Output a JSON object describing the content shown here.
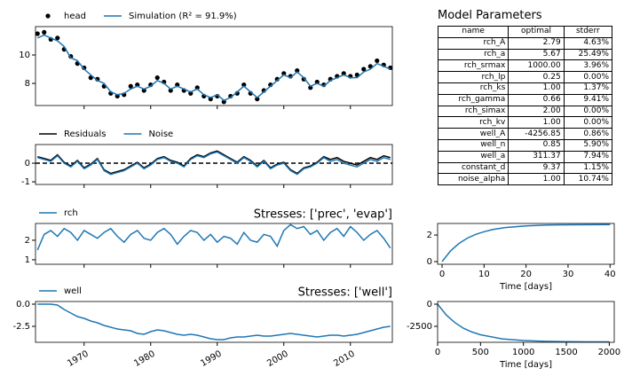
{
  "chart_data": [
    {
      "type": "line",
      "x": [
        1963,
        1964,
        1965,
        1966,
        1967,
        1968,
        1969,
        1970,
        1971,
        1972,
        1973,
        1974,
        1975,
        1976,
        1977,
        1978,
        1979,
        1980,
        1981,
        1982,
        1983,
        1984,
        1985,
        1986,
        1987,
        1988,
        1989,
        1990,
        1991,
        1992,
        1993,
        1994,
        1995,
        1996,
        1997,
        1998,
        1999,
        2000,
        2001,
        2002,
        2003,
        2004,
        2005,
        2006,
        2007,
        2008,
        2009,
        2010,
        2011,
        2012,
        2013,
        2014,
        2015,
        2016
      ],
      "series": [
        {
          "name": "head",
          "color": "#000000",
          "marker": "dot",
          "values": [
            11.5,
            11.6,
            11.1,
            11.2,
            10.4,
            9.9,
            9.4,
            9.1,
            8.4,
            8.3,
            7.8,
            7.3,
            7.1,
            7.2,
            7.8,
            7.9,
            7.5,
            7.9,
            8.4,
            8.1,
            7.5,
            7.9,
            7.5,
            7.3,
            7.7,
            7.1,
            6.9,
            7.1,
            6.7,
            7.1,
            7.3,
            7.9,
            7.3,
            6.9,
            7.5,
            7.9,
            8.3,
            8.7,
            8.5,
            8.9,
            8.3,
            7.7,
            8.1,
            7.9,
            8.3,
            8.5,
            8.7,
            8.5,
            8.6,
            9.0,
            9.2,
            9.6,
            9.3,
            9.1
          ]
        },
        {
          "name": "Simulation (R² = 91.9%)",
          "color": "#1f77b4",
          "values": [
            11.2,
            11.4,
            11.2,
            11.0,
            10.6,
            9.8,
            9.6,
            9.0,
            8.6,
            8.2,
            8.0,
            7.4,
            7.2,
            7.3,
            7.6,
            7.8,
            7.6,
            7.8,
            8.2,
            8.0,
            7.6,
            7.8,
            7.6,
            7.4,
            7.6,
            7.2,
            7.0,
            7.2,
            6.8,
            7.0,
            7.4,
            7.8,
            7.4,
            7.0,
            7.4,
            7.8,
            8.2,
            8.6,
            8.4,
            8.8,
            8.4,
            7.8,
            8.0,
            7.8,
            8.2,
            8.4,
            8.6,
            8.4,
            8.4,
            8.8,
            9.0,
            9.4,
            9.2,
            9.0
          ]
        }
      ],
      "xlim": [
        1962.7,
        2016.3
      ],
      "ylim": [
        6.44,
        12.0
      ],
      "yticks": [
        8,
        10
      ]
    },
    {
      "type": "line",
      "x": [
        1963,
        1964,
        1965,
        1966,
        1967,
        1968,
        1969,
        1970,
        1971,
        1972,
        1973,
        1974,
        1975,
        1976,
        1977,
        1978,
        1979,
        1980,
        1981,
        1982,
        1983,
        1984,
        1985,
        1986,
        1987,
        1988,
        1989,
        1990,
        1991,
        1992,
        1993,
        1994,
        1995,
        1996,
        1997,
        1998,
        1999,
        2000,
        2001,
        2002,
        2003,
        2004,
        2005,
        2006,
        2007,
        2008,
        2009,
        2010,
        2011,
        2012,
        2013,
        2014,
        2015,
        2016
      ],
      "series": [
        {
          "name": "Residuals",
          "color": "#000000",
          "values": [
            0.35,
            0.25,
            0.15,
            0.45,
            0.05,
            -0.15,
            0.15,
            -0.25,
            -0.05,
            0.25,
            -0.35,
            -0.55,
            -0.45,
            -0.35,
            -0.15,
            0.05,
            -0.25,
            -0.05,
            0.25,
            0.35,
            0.15,
            0.05,
            -0.15,
            0.25,
            0.45,
            0.35,
            0.55,
            0.65,
            0.45,
            0.25,
            0.05,
            0.35,
            0.15,
            -0.15,
            0.15,
            -0.25,
            -0.05,
            0.05,
            -0.35,
            -0.55,
            -0.25,
            -0.15,
            0.05,
            0.35,
            0.2,
            0.3,
            0.1,
            0.0,
            -0.1,
            0.1,
            0.3,
            0.2,
            0.4,
            0.3
          ]
        },
        {
          "name": "Noise",
          "color": "#1f77b4",
          "values": [
            0.3,
            0.2,
            0.1,
            0.4,
            0.0,
            -0.2,
            0.1,
            -0.3,
            -0.1,
            0.2,
            -0.4,
            -0.6,
            -0.5,
            -0.4,
            -0.2,
            0.0,
            -0.3,
            -0.1,
            0.2,
            0.3,
            0.1,
            0.0,
            -0.2,
            0.2,
            0.4,
            0.3,
            0.5,
            0.6,
            0.4,
            0.2,
            0.0,
            0.3,
            0.1,
            -0.2,
            0.1,
            -0.3,
            -0.1,
            0.0,
            -0.4,
            -0.6,
            -0.3,
            -0.2,
            0.0,
            0.3,
            0.1,
            0.2,
            0.0,
            -0.1,
            -0.2,
            0.0,
            0.2,
            0.1,
            0.3,
            0.2
          ]
        }
      ],
      "hline": 0,
      "xlim": [
        1962.7,
        2016.3
      ],
      "ylim": [
        -1.14,
        1.0
      ],
      "yticks": [
        -1,
        0
      ]
    },
    {
      "type": "line",
      "title": "Stresses: ['prec', 'evap']",
      "x": [
        1963,
        1964,
        1965,
        1966,
        1967,
        1968,
        1969,
        1970,
        1971,
        1972,
        1973,
        1974,
        1975,
        1976,
        1977,
        1978,
        1979,
        1980,
        1981,
        1982,
        1983,
        1984,
        1985,
        1986,
        1987,
        1988,
        1989,
        1990,
        1991,
        1992,
        1993,
        1994,
        1995,
        1996,
        1997,
        1998,
        1999,
        2000,
        2001,
        2002,
        2003,
        2004,
        2005,
        2006,
        2007,
        2008,
        2009,
        2010,
        2011,
        2012,
        2013,
        2014,
        2015,
        2016
      ],
      "series": [
        {
          "name": "rch",
          "color": "#1f77b4",
          "values": [
            1.5,
            2.3,
            2.5,
            2.2,
            2.6,
            2.4,
            2.0,
            2.5,
            2.3,
            2.1,
            2.4,
            2.6,
            2.2,
            1.9,
            2.3,
            2.5,
            2.1,
            2.0,
            2.4,
            2.6,
            2.3,
            1.8,
            2.2,
            2.5,
            2.4,
            2.0,
            2.3,
            1.9,
            2.2,
            2.1,
            1.8,
            2.4,
            2.0,
            1.9,
            2.3,
            2.2,
            1.7,
            2.5,
            2.8,
            2.6,
            2.7,
            2.3,
            2.5,
            2.0,
            2.4,
            2.6,
            2.2,
            2.7,
            2.4,
            2.0,
            2.3,
            2.5,
            2.1,
            1.6
          ]
        }
      ],
      "xlim": [
        1962.7,
        2016.3
      ],
      "ylim": [
        0.77,
        2.86
      ],
      "yticks": [
        1,
        2
      ]
    },
    {
      "type": "line",
      "title": "Stresses: ['well']",
      "x": [
        1963,
        1964,
        1965,
        1966,
        1967,
        1968,
        1969,
        1970,
        1971,
        1972,
        1973,
        1974,
        1975,
        1976,
        1977,
        1978,
        1979,
        1980,
        1981,
        1982,
        1983,
        1984,
        1985,
        1986,
        1987,
        1988,
        1989,
        1990,
        1991,
        1992,
        1993,
        1994,
        1995,
        1996,
        1997,
        1998,
        1999,
        2000,
        2001,
        2002,
        2003,
        2004,
        2005,
        2006,
        2007,
        2008,
        2009,
        2010,
        2011,
        2012,
        2013,
        2014,
        2015,
        2016
      ],
      "series": [
        {
          "name": "well",
          "color": "#1f77b4",
          "values": [
            0.0,
            0.0,
            0.0,
            -0.1,
            -0.6,
            -1.0,
            -1.4,
            -1.6,
            -1.9,
            -2.1,
            -2.4,
            -2.6,
            -2.8,
            -2.9,
            -3.0,
            -3.3,
            -3.4,
            -3.1,
            -2.9,
            -3.0,
            -3.2,
            -3.4,
            -3.5,
            -3.4,
            -3.5,
            -3.7,
            -3.9,
            -4.0,
            -4.0,
            -3.8,
            -3.7,
            -3.7,
            -3.6,
            -3.5,
            -3.6,
            -3.6,
            -3.5,
            -3.4,
            -3.3,
            -3.4,
            -3.5,
            -3.6,
            -3.7,
            -3.6,
            -3.5,
            -3.5,
            -3.6,
            -3.5,
            -3.4,
            -3.2,
            -3.0,
            -2.8,
            -2.6,
            -2.5
          ]
        }
      ],
      "xlim": [
        1962.7,
        2016.3
      ],
      "ylim": [
        -4.3,
        0.3
      ],
      "yticks": [
        {
          "value": 0,
          "label": "0.0"
        },
        -2.5
      ],
      "xticks": [
        1970,
        1980,
        1990,
        2000,
        2010
      ],
      "xtick_rotation": 30
    },
    {
      "type": "line",
      "xlabel": "Time [days]",
      "x": [
        0,
        2,
        4,
        6,
        8,
        10,
        12,
        15,
        20,
        25,
        30,
        35,
        40
      ],
      "series": [
        {
          "color": "#1f77b4",
          "values": [
            0,
            0.8,
            1.36,
            1.76,
            2.05,
            2.25,
            2.41,
            2.56,
            2.69,
            2.75,
            2.77,
            2.78,
            2.79
          ]
        }
      ],
      "xlim": [
        -1.06,
        41.0
      ],
      "ylim": [
        -0.2,
        2.87
      ],
      "yticks": [
        0,
        2
      ],
      "xticks": [
        0,
        10,
        20,
        30,
        40
      ]
    },
    {
      "type": "line",
      "xlabel": "Time [days]",
      "x": [
        0,
        100,
        200,
        300,
        400,
        500,
        750,
        1000,
        1250,
        1500,
        1750,
        2000
      ],
      "series": [
        {
          "color": "#1f77b4",
          "values": [
            0,
            -1206,
            -2071,
            -2711,
            -3140,
            -3452,
            -3907,
            -4105,
            -4192,
            -4228,
            -4245,
            -4252
          ]
        }
      ],
      "xlim": [
        0,
        2058
      ],
      "ylim": [
        -4300,
        300
      ],
      "yticks": [
        0,
        -2500
      ],
      "xticks": [
        0,
        500,
        1000,
        1500,
        2000
      ]
    }
  ],
  "table": {
    "title": "Model Parameters",
    "columns": [
      "name",
      "optimal",
      "stderr"
    ],
    "rows": [
      [
        "rch_A",
        "2.79",
        "4.63%"
      ],
      [
        "rch_a",
        "5.67",
        "25.49%"
      ],
      [
        "rch_srmax",
        "1000.00",
        "3.96%"
      ],
      [
        "rch_lp",
        "0.25",
        "0.00%"
      ],
      [
        "rch_ks",
        "1.00",
        "1.37%"
      ],
      [
        "rch_gamma",
        "0.66",
        "9.41%"
      ],
      [
        "rch_simax",
        "2.00",
        "0.00%"
      ],
      [
        "rch_kv",
        "1.00",
        "0.00%"
      ],
      [
        "well_A",
        "-4256.85",
        "0.86%"
      ],
      [
        "well_n",
        "0.85",
        "5.90%"
      ],
      [
        "well_a",
        "311.37",
        "7.94%"
      ],
      [
        "constant_d",
        "9.37",
        "1.15%"
      ],
      [
        "noise_alpha",
        "1.00",
        "10.74%"
      ]
    ]
  }
}
